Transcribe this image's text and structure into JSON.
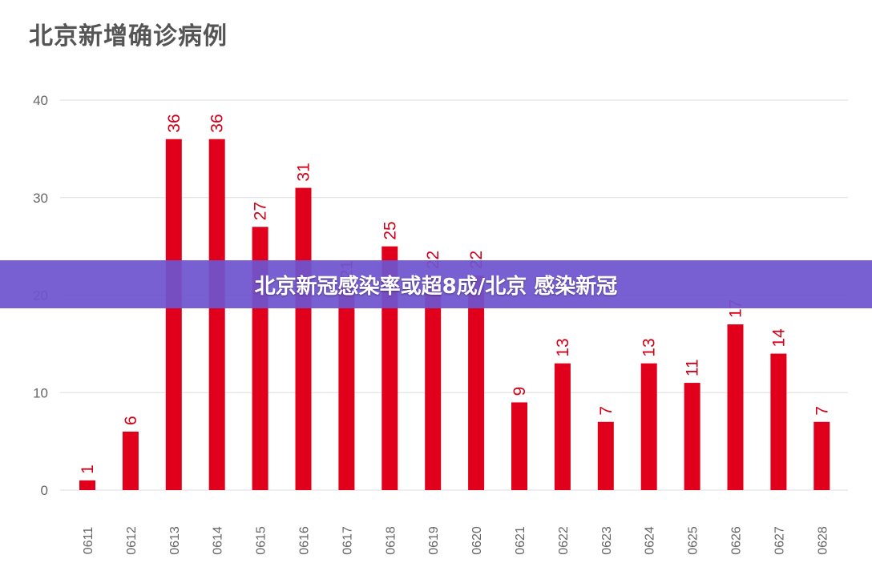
{
  "chart_data": {
    "type": "bar",
    "title": "北京新增确诊病例",
    "categories": [
      "0611",
      "0612",
      "0613",
      "0614",
      "0615",
      "0616",
      "0617",
      "0618",
      "0619",
      "0620",
      "0621",
      "0622",
      "0623",
      "0624",
      "0625",
      "0626",
      "0627",
      "0628"
    ],
    "values": [
      1,
      6,
      36,
      36,
      27,
      31,
      21,
      25,
      22,
      22,
      9,
      13,
      7,
      13,
      11,
      17,
      14,
      7
    ],
    "ylim": [
      0,
      40
    ],
    "yticks": [
      0,
      10,
      20,
      30,
      40
    ],
    "grid": true,
    "bar_color": "#e0001b",
    "label_color": "#d40018"
  },
  "banner": {
    "text": "北京新冠感染率或超8成/北京 感染新冠",
    "color": "#6f54cf"
  }
}
